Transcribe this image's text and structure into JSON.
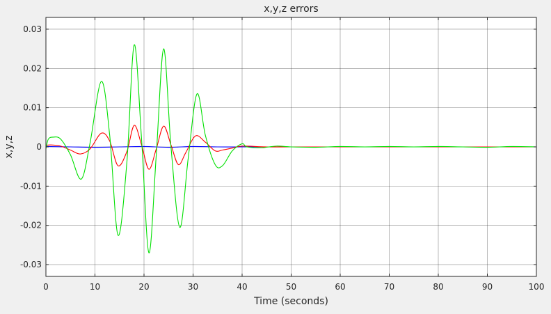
{
  "chart_data": {
    "type": "line",
    "title": "x,y,z errors",
    "xlabel": "Time (seconds)",
    "ylabel": "x,y,z",
    "xlim": [
      0,
      100
    ],
    "ylim": [
      -0.033,
      0.033
    ],
    "xticks": [
      0,
      10,
      20,
      30,
      40,
      50,
      60,
      70,
      80,
      90,
      100
    ],
    "xtick_labels": [
      "0",
      "10",
      "20",
      "30",
      "40",
      "50",
      "60",
      "70",
      "80",
      "90",
      "100"
    ],
    "yticks": [
      0.03,
      0.02,
      0.01,
      0,
      -0.01,
      -0.02,
      -0.03
    ],
    "ytick_labels": [
      "0.03",
      "0.02",
      "0.01",
      "0",
      "-0.01",
      "-0.02",
      "-0.03"
    ],
    "grid": true,
    "series": [
      {
        "color": "#0000ff",
        "x": [
          0,
          5,
          10,
          15,
          20,
          25,
          30,
          35,
          40,
          45,
          50,
          60,
          70,
          80,
          90,
          100
        ],
        "values": [
          0.0001,
          0,
          -0.0001,
          0,
          0.0001,
          -0.0001,
          0.0001,
          0,
          0,
          0,
          0,
          0,
          0,
          0,
          0,
          0
        ]
      },
      {
        "color": "#ff0000",
        "x": [
          0,
          1,
          3,
          5,
          7,
          9,
          11.3,
          13,
          14.7,
          16.5,
          18,
          19.5,
          21,
          22.5,
          24,
          25.5,
          27,
          28.5,
          30.5,
          32.5,
          34.5,
          36,
          38,
          40,
          45,
          50,
          60,
          70,
          80,
          90,
          100
        ],
        "values": [
          0.0004,
          0.0005,
          0.0002,
          -0.0008,
          -0.0018,
          -0.0005,
          0.0035,
          0.0015,
          -0.0048,
          -0.0012,
          0.0055,
          0.0005,
          -0.0057,
          -0.0005,
          0.0053,
          0.0005,
          -0.0045,
          -0.0015,
          0.0028,
          0.0012,
          -0.001,
          -0.0008,
          -0.0003,
          0.0002,
          0,
          0,
          0,
          0,
          0,
          0,
          0
        ]
      },
      {
        "color": "#00e000",
        "x": [
          0,
          0.5,
          1.5,
          3,
          5,
          7.2,
          9,
          11.3,
          13,
          14.7,
          16.5,
          18,
          19.5,
          21,
          22.5,
          24,
          25.5,
          27.3,
          29,
          30.8,
          32.5,
          34.5,
          36,
          38,
          40,
          41,
          44,
          47,
          50,
          55,
          60,
          65,
          70,
          75,
          80,
          85,
          90,
          95,
          100
        ],
        "values": [
          -0.0005,
          0.002,
          0.0025,
          0.002,
          -0.002,
          -0.0082,
          0.001,
          0.0167,
          0.003,
          -0.0225,
          -0.004,
          0.026,
          0.002,
          -0.027,
          -0.002,
          0.025,
          0.0,
          -0.0205,
          -0.003,
          0.0135,
          0.003,
          -0.0045,
          -0.0048,
          -0.001,
          0.0008,
          0.0,
          -0.0002,
          0.0002,
          0.0,
          -0.0001,
          0.0001,
          0.0,
          0.0001,
          0.0,
          0.0001,
          0.0,
          -0.0001,
          0.0001,
          0.0
        ]
      }
    ]
  }
}
